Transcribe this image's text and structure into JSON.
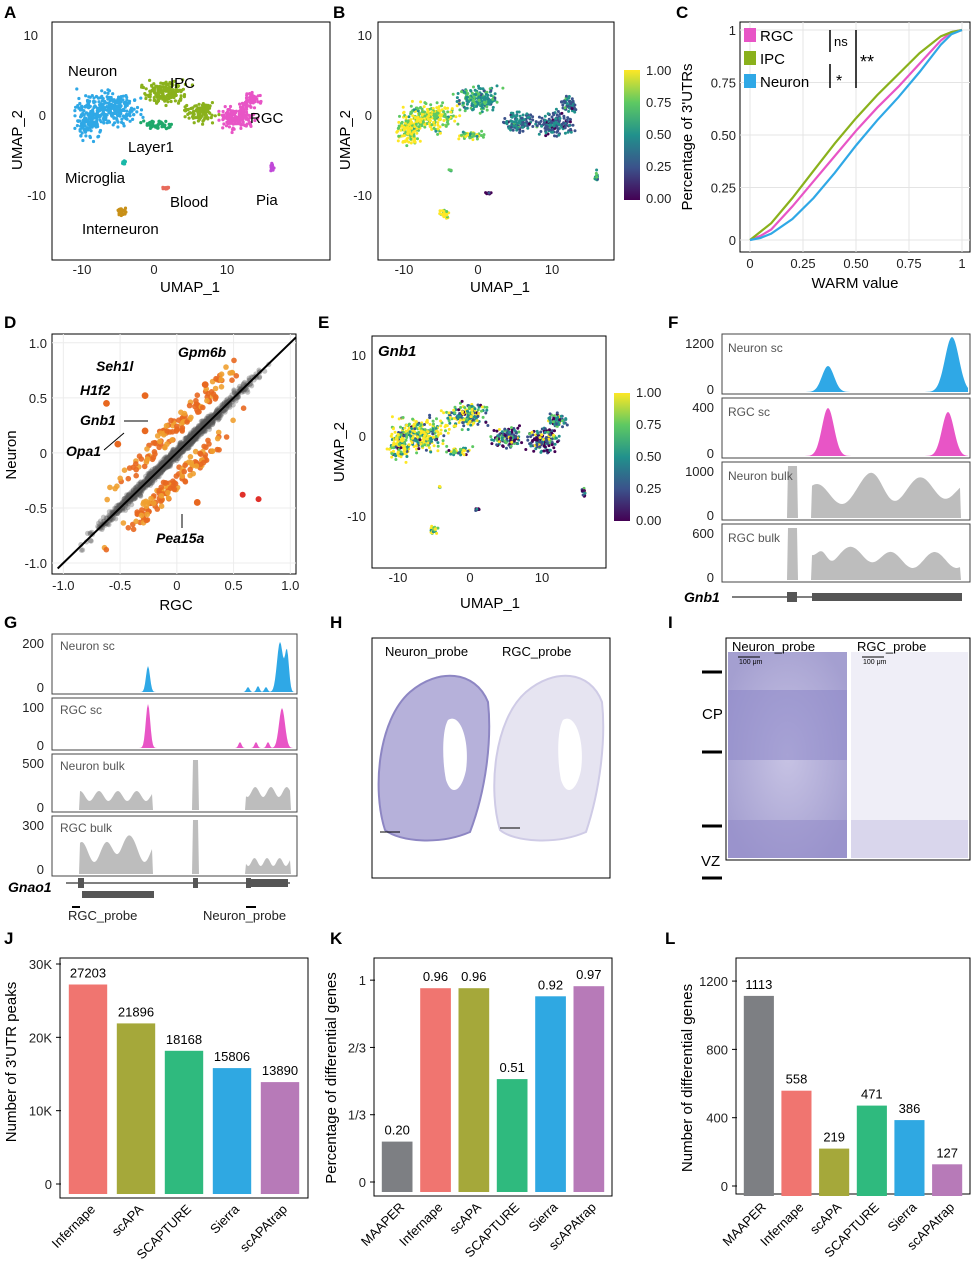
{
  "panel_letters": [
    "A",
    "B",
    "C",
    "D",
    "E",
    "F",
    "G",
    "H",
    "I",
    "J",
    "K",
    "L"
  ],
  "panel_a": {
    "xlabel": "UMAP_1",
    "ylabel": "UMAP_2",
    "xticks": [
      "-10",
      "0",
      "10"
    ],
    "yticks": [
      "10",
      "0",
      "-10"
    ],
    "clusters": [
      {
        "label": "Neuron",
        "color": "#2fa8e6"
      },
      {
        "label": "IPC",
        "color": "#8ab11c"
      },
      {
        "label": "RGC",
        "color": "#e855c6"
      },
      {
        "label": "Layer1",
        "color": "#1fa86a"
      },
      {
        "label": "Microglia",
        "color": "#19b8a8"
      },
      {
        "label": "Blood",
        "color": "#e86b5c"
      },
      {
        "label": "Pia",
        "color": "#c048d8"
      },
      {
        "label": "Interneuron",
        "color": "#c89018"
      }
    ]
  },
  "panel_b": {
    "xlabel": "UMAP_1",
    "ylabel": "UMAP_2",
    "xticks": [
      "-10",
      "0",
      "10"
    ],
    "yticks": [
      "10",
      "0",
      "-10"
    ],
    "colorbar_ticks": [
      "1.00",
      "0.75",
      "0.50",
      "0.25",
      "0.00"
    ]
  },
  "chart_data": [
    {
      "panel": "C",
      "type": "line",
      "xlabel": "WARM value",
      "ylabel": "Percentage of 3'UTRs",
      "xticks": [
        "0",
        "0.25",
        "0.50",
        "0.75",
        "1"
      ],
      "yticks": [
        "1",
        "0.75",
        "0.50",
        "0.25",
        "0"
      ],
      "xlim": [
        0,
        1
      ],
      "ylim": [
        0,
        1
      ],
      "series": [
        {
          "name": "RGC",
          "color": "#e855c6",
          "x": [
            0,
            0.05,
            0.1,
            0.2,
            0.3,
            0.4,
            0.5,
            0.6,
            0.7,
            0.8,
            0.9,
            0.95,
            1
          ],
          "y": [
            0,
            0.02,
            0.05,
            0.16,
            0.28,
            0.4,
            0.52,
            0.63,
            0.73,
            0.84,
            0.95,
            0.99,
            1
          ]
        },
        {
          "name": "IPC",
          "color": "#8ab11c",
          "x": [
            0,
            0.05,
            0.1,
            0.2,
            0.3,
            0.4,
            0.5,
            0.6,
            0.7,
            0.8,
            0.9,
            0.95,
            1
          ],
          "y": [
            0,
            0.04,
            0.08,
            0.2,
            0.33,
            0.46,
            0.58,
            0.69,
            0.79,
            0.89,
            0.97,
            0.99,
            1
          ]
        },
        {
          "name": "Neuron",
          "color": "#2fa8e6",
          "x": [
            0,
            0.05,
            0.1,
            0.2,
            0.3,
            0.4,
            0.5,
            0.6,
            0.7,
            0.8,
            0.9,
            0.95,
            1
          ],
          "y": [
            0,
            0.01,
            0.03,
            0.1,
            0.2,
            0.32,
            0.45,
            0.57,
            0.68,
            0.8,
            0.93,
            0.98,
            1
          ]
        }
      ],
      "significance": [
        "ns",
        "*",
        "**"
      ]
    },
    {
      "panel": "D",
      "type": "scatter",
      "xlabel": "RGC",
      "ylabel": "Neuron",
      "xticks": [
        "-1.0",
        "-0.5",
        "0",
        "0.5",
        "1.0"
      ],
      "yticks": [
        "1.0",
        "0.5",
        "0",
        "-0.5",
        "-1.0"
      ],
      "xlim": [
        -1.1,
        1.05
      ],
      "ylim": [
        -1.1,
        1.08
      ],
      "highlighted_genes": [
        {
          "label": "Gpm6b",
          "x": 0.25,
          "y": 0.62
        },
        {
          "label": "Seh1l",
          "x": -0.28,
          "y": 0.52
        },
        {
          "label": "H1f2",
          "x": -0.62,
          "y": 0.45
        },
        {
          "label": "Gnb1",
          "x": -0.28,
          "y": 0.2
        },
        {
          "label": "Opa1",
          "x": -0.52,
          "y": 0.08
        },
        {
          "label": "Pea15a",
          "x": 0.18,
          "y": -0.45
        }
      ]
    },
    {
      "panel": "J",
      "type": "bar",
      "ylabel": "Number of 3'UTR peaks",
      "yticks": [
        "30K",
        "20K",
        "10K",
        "0"
      ],
      "ylim": [
        0,
        30000
      ],
      "categories": [
        "Infernape",
        "scAPA",
        "SCAPTURE",
        "Sierra",
        "scAPAtrap"
      ],
      "values": [
        27203,
        21896,
        18168,
        15806,
        13890
      ],
      "value_labels": [
        "27203",
        "21896",
        "18168",
        "15806",
        "13890"
      ],
      "colors": [
        "#f07570",
        "#a5a83a",
        "#2fba7e",
        "#2fa8e2",
        "#b77ab8"
      ]
    },
    {
      "panel": "K",
      "type": "bar",
      "ylabel": "Percentage of differential genes",
      "yticks": [
        "1",
        "2/3",
        "1/3",
        "0"
      ],
      "ylim": [
        0,
        1.08
      ],
      "categories": [
        "MAAPER",
        "Infernape",
        "scAPA",
        "SCAPTURE",
        "Sierra",
        "scAPAtrap"
      ],
      "values": [
        0.2,
        0.96,
        0.96,
        0.51,
        0.92,
        0.97
      ],
      "value_labels": [
        "0.20",
        "0.96",
        "0.96",
        "0.51",
        "0.92",
        "0.97"
      ],
      "colors": [
        "#7d7f83",
        "#f07570",
        "#a5a83a",
        "#2fba7e",
        "#2fa8e2",
        "#b77ab8"
      ]
    },
    {
      "panel": "L",
      "type": "bar",
      "ylabel": "Number of differential genes",
      "yticks": [
        "1200",
        "800",
        "400",
        "0"
      ],
      "ylim": [
        0,
        1300
      ],
      "categories": [
        "MAAPER",
        "Infernape",
        "scAPA",
        "SCAPTURE",
        "Sierra",
        "scAPAtrap"
      ],
      "values": [
        1113,
        558,
        219,
        471,
        386,
        127
      ],
      "value_labels": [
        "1113",
        "558",
        "219",
        "471",
        "386",
        "127"
      ],
      "colors": [
        "#7d7f83",
        "#f07570",
        "#a5a83a",
        "#2fba7e",
        "#2fa8e2",
        "#b77ab8"
      ]
    }
  ],
  "panel_e": {
    "gene": "Gnb1",
    "xlabel": "UMAP_1",
    "ylabel": "UMAP_2",
    "xticks": [
      "-10",
      "0",
      "10"
    ],
    "yticks": [
      "10",
      "0",
      "-10"
    ],
    "colorbar_ticks": [
      "1.00",
      "0.75",
      "0.50",
      "0.25",
      "0.00"
    ]
  },
  "panel_f": {
    "gene": "Gnb1",
    "tracks": [
      {
        "name": "Neuron sc",
        "max": "1200",
        "color": "#2fa8e6"
      },
      {
        "name": "RGC sc",
        "max": "400",
        "color": "#e855c6"
      },
      {
        "name": "Neuron bulk",
        "max": "1000",
        "color": "#bdbdbd"
      },
      {
        "name": "RGC bulk",
        "max": "600",
        "color": "#bdbdbd"
      }
    ]
  },
  "panel_g": {
    "gene": "Gnao1",
    "probes": [
      "RGC_probe",
      "Neuron_probe"
    ],
    "tracks": [
      {
        "name": "Neuron sc",
        "max": "200",
        "color": "#2fa8e6"
      },
      {
        "name": "RGC sc",
        "max": "100",
        "color": "#e855c6"
      },
      {
        "name": "Neuron bulk",
        "max": "500",
        "color": "#bdbdbd"
      },
      {
        "name": "RGC bulk",
        "max": "300",
        "color": "#bdbdbd"
      }
    ]
  },
  "panel_h": {
    "labels": [
      "Neuron_probe",
      "RGC_probe"
    ]
  },
  "panel_i": {
    "labels": [
      "Neuron_probe",
      "RGC_probe"
    ],
    "scale": "100 μm",
    "layers": [
      "CP",
      "VZ"
    ]
  }
}
